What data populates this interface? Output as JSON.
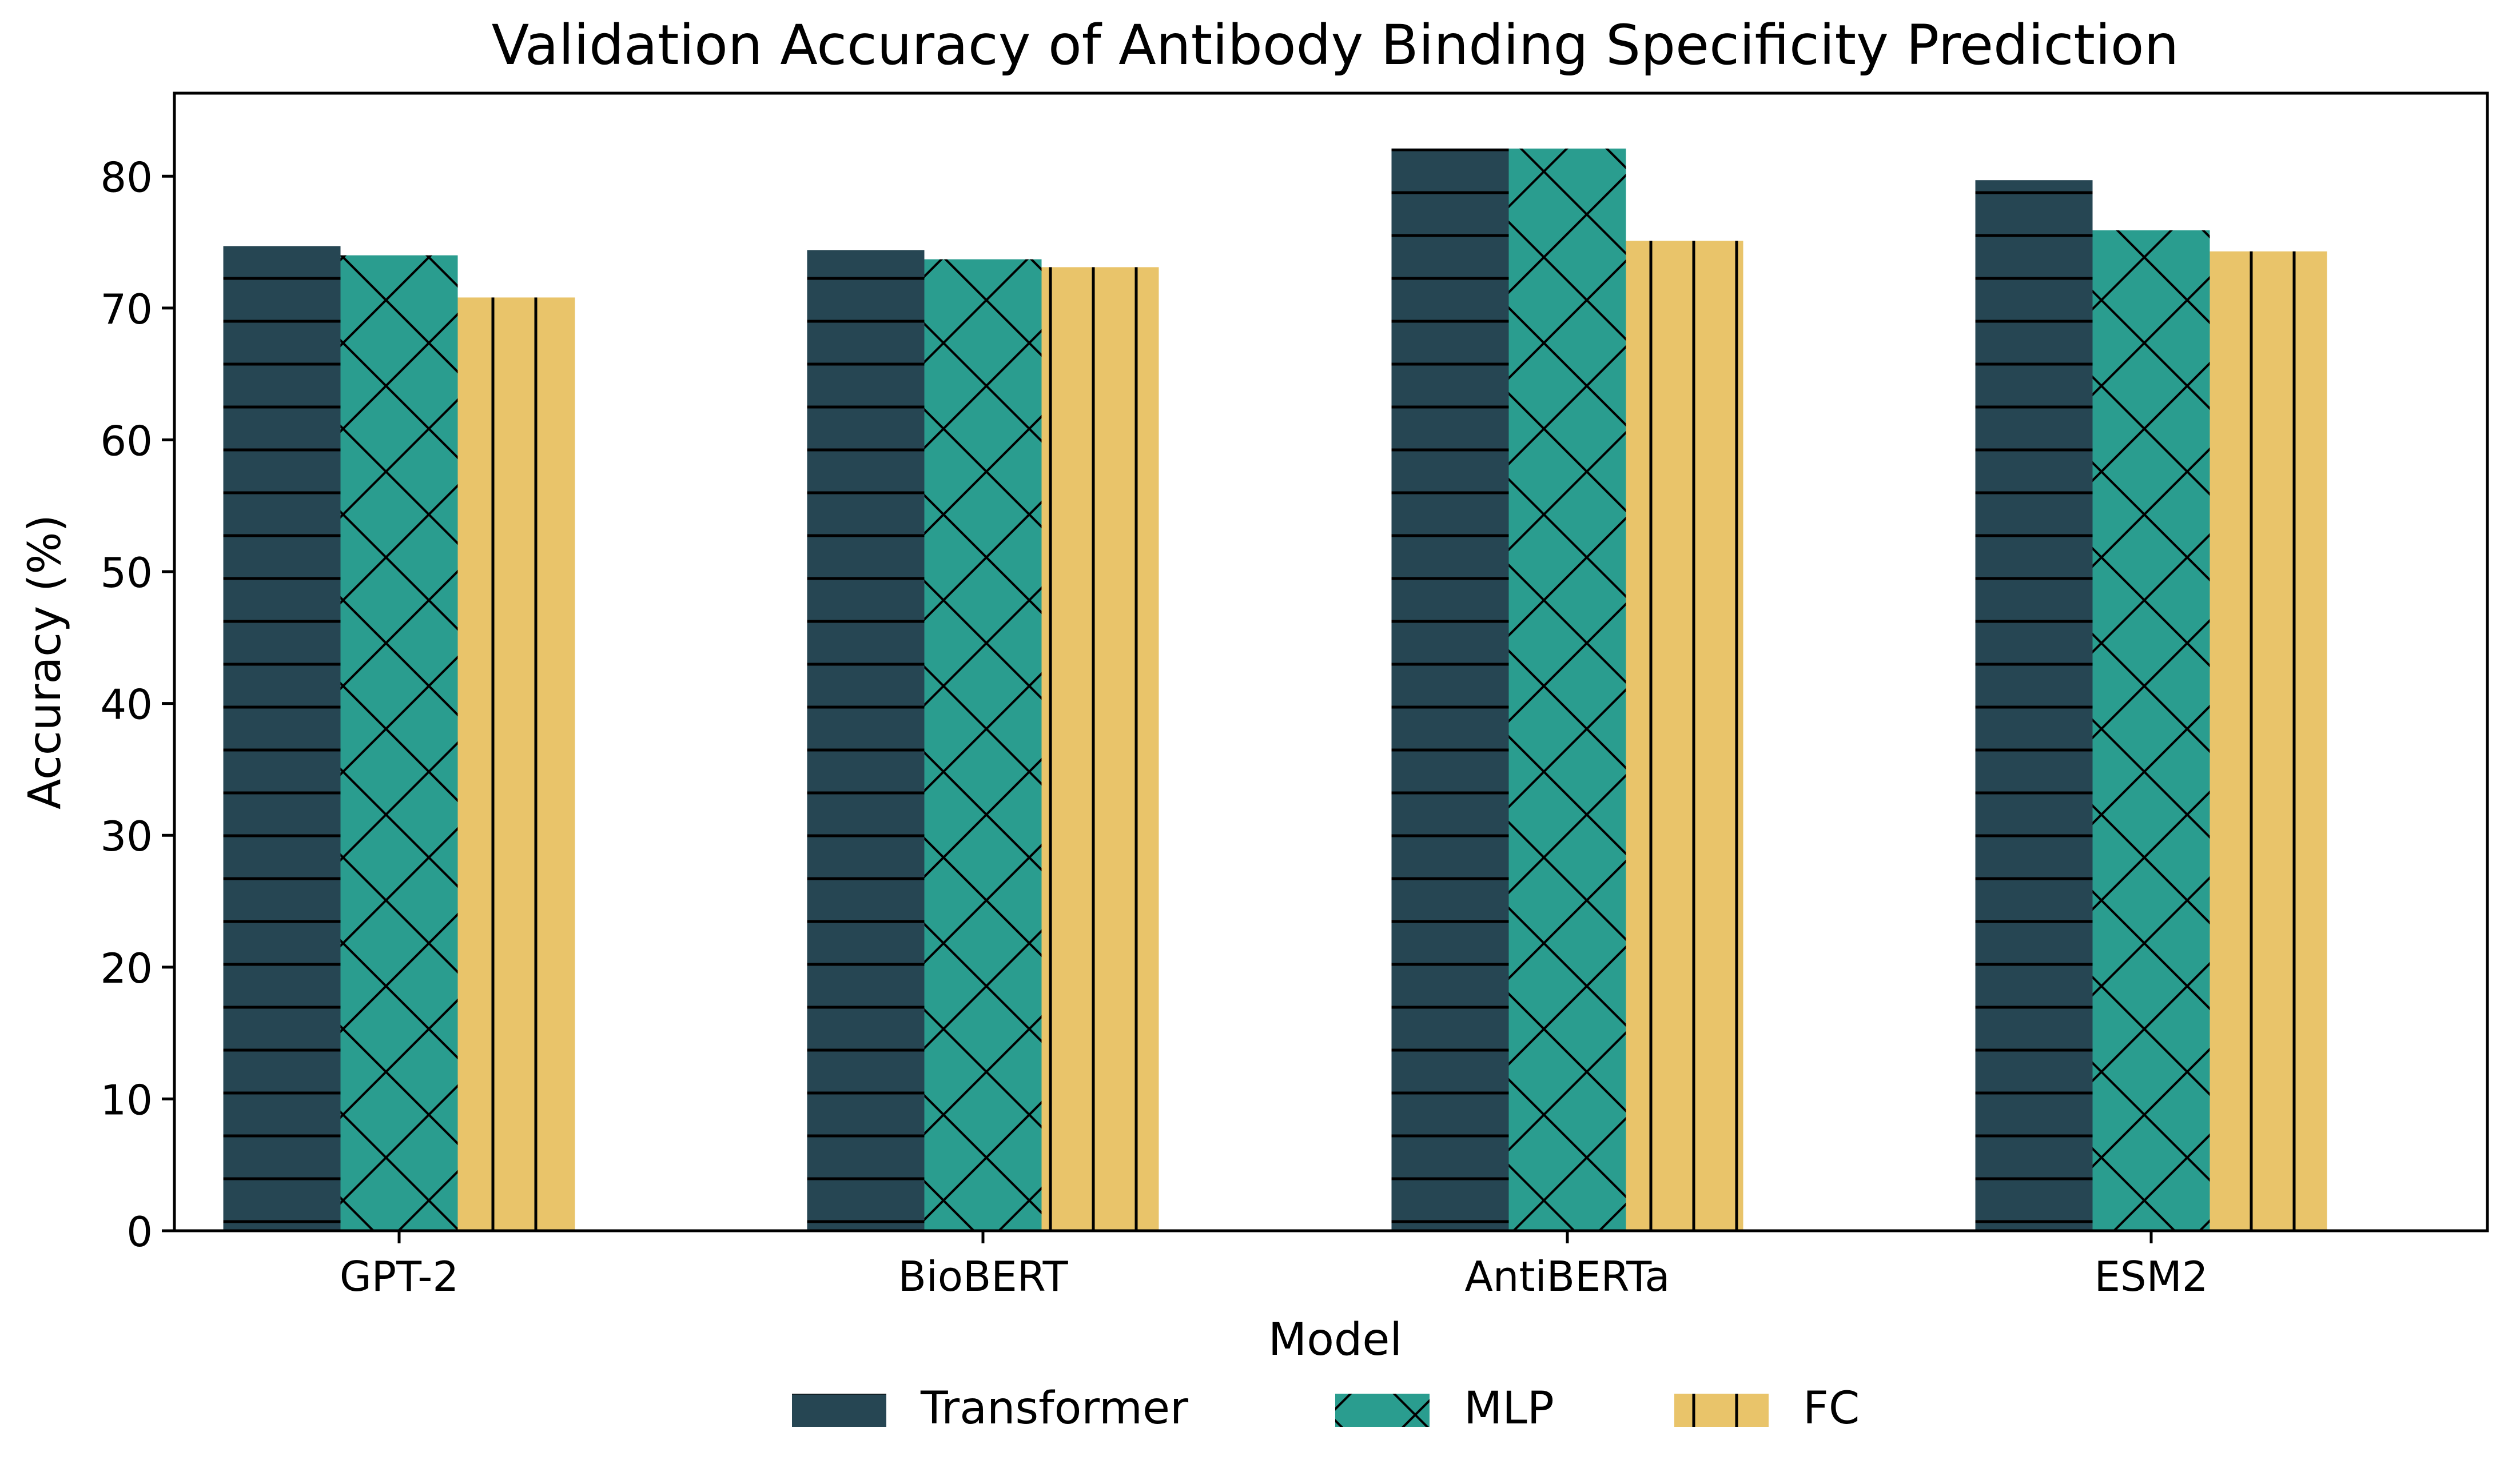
{
  "chart_data": {
    "type": "bar",
    "title": "Validation Accuracy of Antibody Binding Specificity Prediction",
    "xlabel": "Model",
    "ylabel": "Accuracy (%)",
    "ylim": [
      0,
      86.3
    ],
    "yticks": [
      0,
      10,
      20,
      30,
      40,
      50,
      60,
      70,
      80
    ],
    "grid": false,
    "legend_position": "bottom-center",
    "categories": [
      "GPT-2",
      "BioBERT",
      "AntiBERTa",
      "ESM2"
    ],
    "series": [
      {
        "name": "Transformer",
        "color": "#264653",
        "hatch": "horizontal",
        "values": [
          74.7,
          74.4,
          82.1,
          79.7
        ]
      },
      {
        "name": "MLP",
        "color": "#2a9d8f",
        "hatch": "crosshatch",
        "values": [
          74.0,
          73.7,
          82.1,
          75.9
        ]
      },
      {
        "name": "FC",
        "color": "#e9c46a",
        "hatch": "vertical",
        "values": [
          70.8,
          73.1,
          75.1,
          74.3
        ]
      }
    ]
  }
}
